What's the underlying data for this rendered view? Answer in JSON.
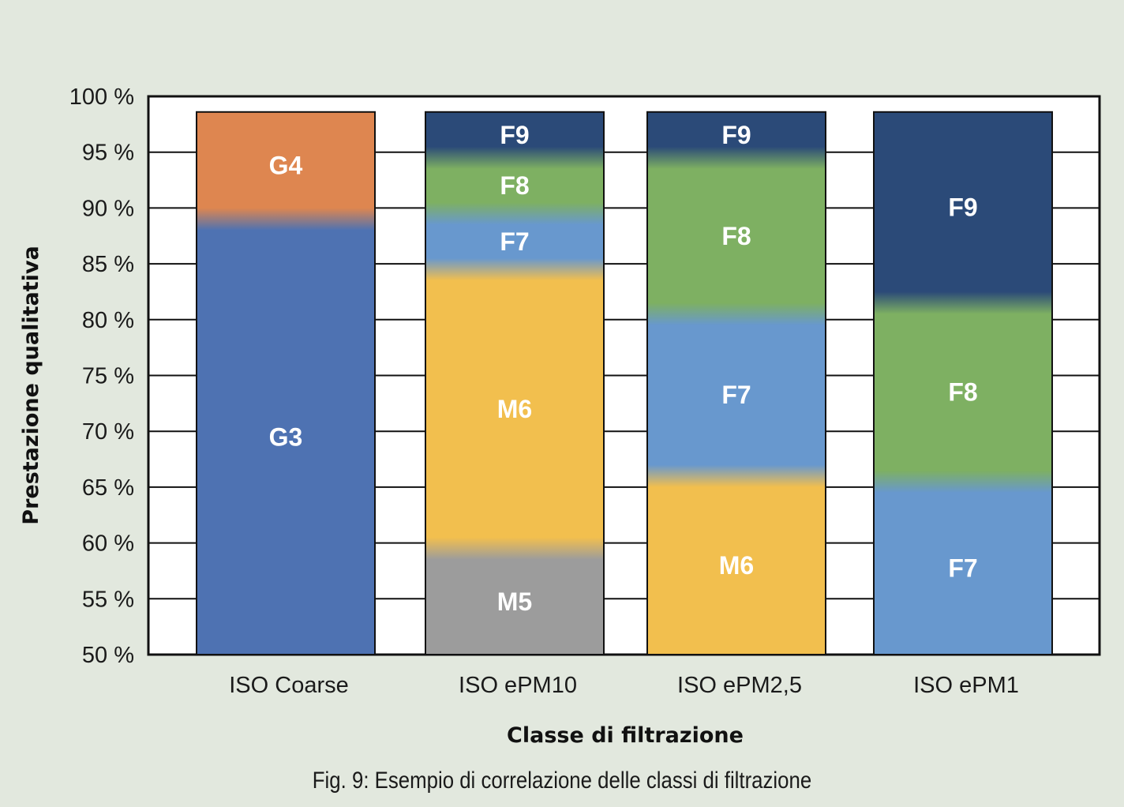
{
  "chart_data": {
    "type": "bar",
    "stacked": true,
    "xlabel": "Classe di filtrazione",
    "ylabel": "Prestazione qualitativa",
    "ylim": [
      50,
      100
    ],
    "y_ticks": [
      "50 %",
      "55 %",
      "60 %",
      "65 %",
      "70 %",
      "75 %",
      "80 %",
      "85 %",
      "90 %",
      "95 %",
      "100 %"
    ],
    "grid": "horizontal",
    "categories": [
      "ISO Coarse",
      "ISO ePM10",
      "ISO ePM2,5",
      "ISO ePM1"
    ],
    "bars": [
      {
        "category": "ISO Coarse",
        "segments": [
          {
            "label": "G3",
            "from": 50,
            "to": 89
          },
          {
            "label": "G4",
            "from": 89,
            "to": 98.6
          }
        ]
      },
      {
        "category": "ISO ePM10",
        "segments": [
          {
            "label": "M5",
            "from": 50,
            "to": 59.5
          },
          {
            "label": "M6",
            "from": 59.5,
            "to": 84.5
          },
          {
            "label": "F7",
            "from": 84.5,
            "to": 89.5
          },
          {
            "label": "F8",
            "from": 89.5,
            "to": 94.5
          },
          {
            "label": "F9",
            "from": 94.5,
            "to": 98.6
          }
        ]
      },
      {
        "category": "ISO ePM2,5",
        "segments": [
          {
            "label": "M6",
            "from": 50,
            "to": 66
          },
          {
            "label": "F7",
            "from": 66,
            "to": 80.5
          },
          {
            "label": "F8",
            "from": 80.5,
            "to": 94.5
          },
          {
            "label": "F9",
            "from": 94.5,
            "to": 98.6
          }
        ]
      },
      {
        "category": "ISO ePM1",
        "segments": [
          {
            "label": "F7",
            "from": 50,
            "to": 65.5
          },
          {
            "label": "F8",
            "from": 65.5,
            "to": 81.5
          },
          {
            "label": "F9",
            "from": 81.5,
            "to": 98.6
          }
        ]
      }
    ],
    "colors": {
      "G3": "#4e72b2",
      "G4": "#de8650",
      "M5": "#9c9c9c",
      "M6": "#f2bf4e",
      "F7": "#6898ce",
      "F8": "#7eb062",
      "F9": "#2b4a78"
    }
  },
  "caption": "Fig. 9: Esempio di correlazione delle classi di filtrazione"
}
